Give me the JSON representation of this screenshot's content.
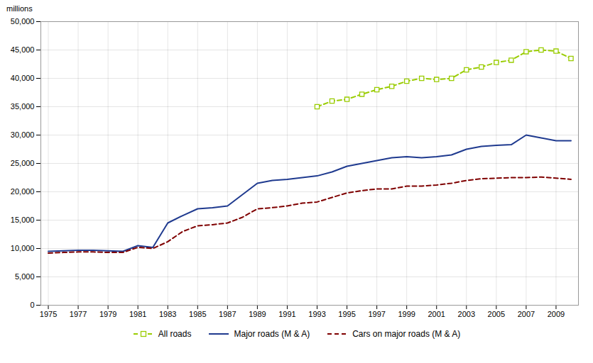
{
  "chart_data": {
    "type": "line",
    "ylabel": "millions",
    "x": [
      1975,
      1976,
      1977,
      1978,
      1979,
      1980,
      1981,
      1982,
      1983,
      1984,
      1985,
      1986,
      1987,
      1988,
      1989,
      1990,
      1991,
      1992,
      1993,
      1994,
      1995,
      1996,
      1997,
      1998,
      1999,
      2000,
      2001,
      2002,
      2003,
      2004,
      2005,
      2006,
      2007,
      2008,
      2009,
      2010
    ],
    "series": [
      {
        "name": "All roads",
        "color": "#99cc00",
        "line_style": "dashed",
        "marker": "square",
        "values": [
          null,
          null,
          null,
          null,
          null,
          null,
          null,
          null,
          null,
          null,
          null,
          null,
          null,
          null,
          null,
          null,
          null,
          null,
          35000,
          36000,
          36300,
          37200,
          38000,
          38600,
          39500,
          40000,
          39800,
          40000,
          41500,
          42000,
          42800,
          43200,
          44700,
          45000,
          44800,
          43500
        ]
      },
      {
        "name": "Major roads (M & A)",
        "color": "#1f3a8f",
        "line_style": "solid",
        "values": [
          9500,
          9600,
          9700,
          9700,
          9600,
          9500,
          10500,
          10200,
          14500,
          15800,
          17000,
          17200,
          17500,
          19500,
          21500,
          22000,
          22200,
          22500,
          22800,
          23500,
          24500,
          25000,
          25500,
          26000,
          26200,
          26000,
          26200,
          26500,
          27500,
          28000,
          28200,
          28300,
          30000,
          29500,
          29000,
          29000
        ]
      },
      {
        "name": "Cars on major roads (M & A)",
        "color": "#7f0000",
        "line_style": "dashed",
        "values": [
          9200,
          9300,
          9400,
          9400,
          9300,
          9300,
          10200,
          10000,
          11200,
          13000,
          14000,
          14200,
          14500,
          15500,
          17000,
          17200,
          17500,
          18000,
          18200,
          19000,
          19800,
          20200,
          20500,
          20500,
          21000,
          21000,
          21200,
          21500,
          22000,
          22300,
          22400,
          22500,
          22500,
          22600,
          22400,
          22200
        ]
      }
    ],
    "xlim": [
      1974.5,
      2010.5
    ],
    "xticks": [
      1975,
      1977,
      1979,
      1981,
      1983,
      1985,
      1987,
      1989,
      1991,
      1993,
      1995,
      1997,
      1999,
      2001,
      2003,
      2005,
      2007,
      2009
    ],
    "ylim": [
      0,
      50000
    ],
    "yticks": [
      0,
      {
        "value": 5000,
        "label": "5,000"
      },
      {
        "value": 10000,
        "label": "10,000"
      },
      {
        "value": 15000,
        "label": "15,000"
      },
      {
        "value": 20000,
        "label": "20,000"
      },
      {
        "value": 25000,
        "label": "25,000"
      },
      {
        "value": 30000,
        "label": "30,000"
      },
      {
        "value": 35000,
        "label": "35,000"
      },
      {
        "value": 40000,
        "label": "40,000"
      },
      {
        "value": 45000,
        "label": "45,000"
      },
      {
        "value": 50000,
        "label": "50,000"
      }
    ],
    "grid": true,
    "legend": "bottom"
  }
}
